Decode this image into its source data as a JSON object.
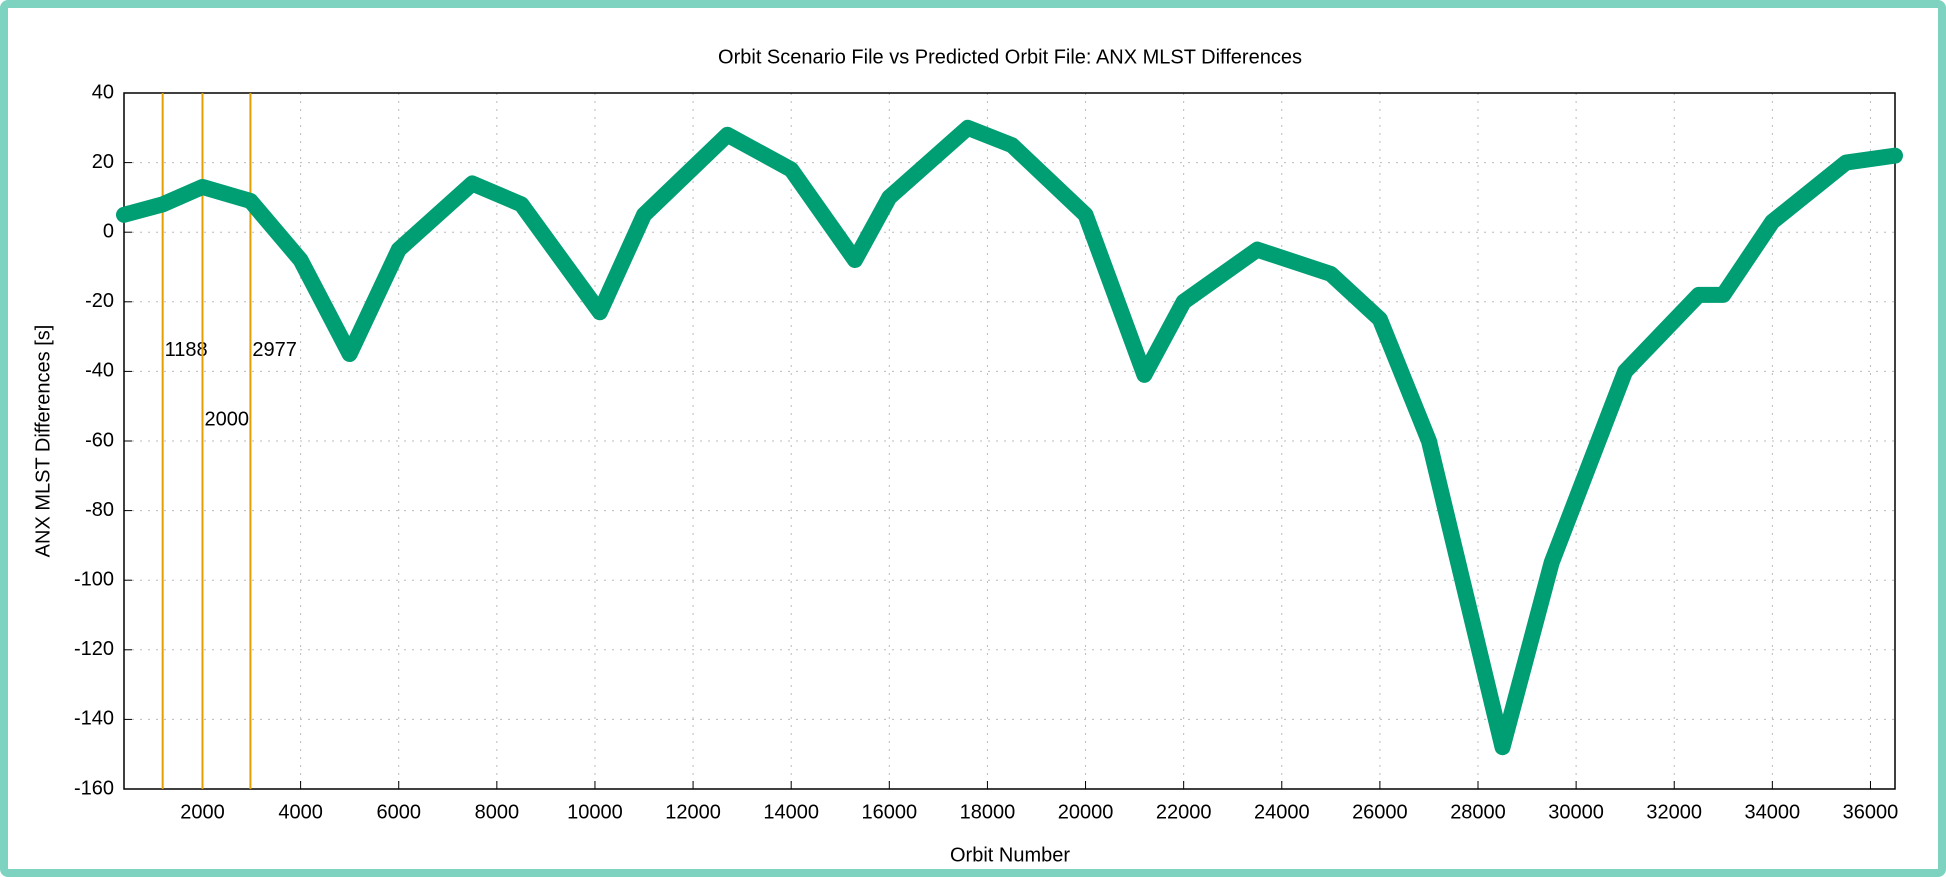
{
  "chart_data": {
    "type": "line",
    "title": "Orbit Scenario File vs Predicted Orbit File: ANX MLST Differences",
    "x_label": "Orbit Number",
    "y_label": "ANX MLST Differences [s]",
    "x": [
      400,
      1188,
      2000,
      2977,
      4000,
      5000,
      6000,
      7500,
      8500,
      10100,
      11000,
      12700,
      14000,
      15300,
      16000,
      17600,
      18500,
      20000,
      21200,
      22000,
      23500,
      25000,
      26000,
      27000,
      28500,
      29500,
      31000,
      32500,
      33000,
      34000,
      35500,
      36500
    ],
    "series": [
      {
        "name": "ANX MLST Differences",
        "color": "#009e73",
        "values": [
          5,
          8,
          13,
          9,
          -8,
          -35,
          -5,
          14,
          8,
          -23,
          5,
          28,
          18,
          -8,
          10,
          30,
          25,
          5,
          -41,
          -20,
          -5,
          -12,
          -25,
          -60,
          -148,
          -95,
          -40,
          -18,
          -18,
          3,
          20,
          22
        ]
      }
    ],
    "vlines": [
      1188,
      2000,
      2977
    ],
    "vline_color": "#e69f00",
    "xlim": [
      400,
      36500
    ],
    "ylim": [
      -160,
      40
    ],
    "xticks": [
      2000,
      4000,
      6000,
      8000,
      10000,
      12000,
      14000,
      16000,
      18000,
      20000,
      22000,
      24000,
      26000,
      28000,
      30000,
      32000,
      34000,
      36000
    ],
    "yticks": [
      -160,
      -140,
      -120,
      -100,
      -80,
      -60,
      -40,
      -20,
      0,
      20,
      40
    ],
    "grid": true
  }
}
